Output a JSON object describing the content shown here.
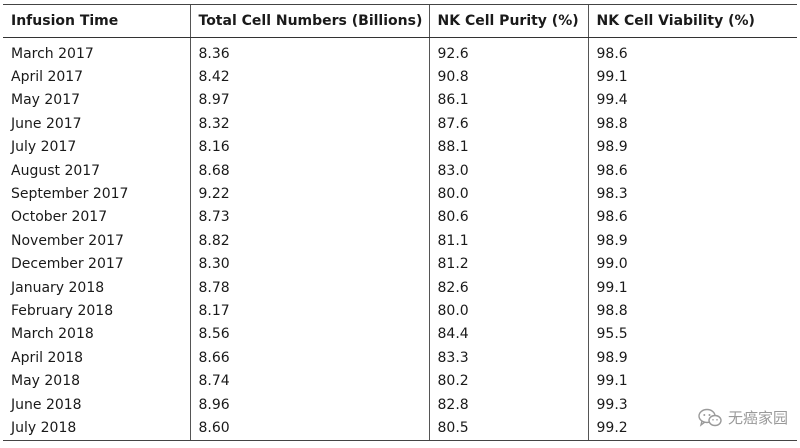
{
  "table": {
    "headers": [
      "Infusion Time",
      "Total Cell Numbers (Billions)",
      "NK Cell Purity (%)",
      "NK Cell Viability (%)"
    ],
    "rows": [
      [
        "March 2017",
        "8.36",
        "92.6",
        "98.6"
      ],
      [
        "April 2017",
        "8.42",
        "90.8",
        "99.1"
      ],
      [
        "May 2017",
        "8.97",
        "86.1",
        "99.4"
      ],
      [
        "June 2017",
        "8.32",
        "87.6",
        "98.8"
      ],
      [
        "July 2017",
        "8.16",
        "88.1",
        "98.9"
      ],
      [
        "August 2017",
        "8.68",
        "83.0",
        "98.6"
      ],
      [
        "September 2017",
        "9.22",
        "80.0",
        "98.3"
      ],
      [
        "October 2017",
        "8.73",
        "80.6",
        "98.6"
      ],
      [
        "November 2017",
        "8.82",
        "81.1",
        "98.9"
      ],
      [
        "December 2017",
        "8.30",
        "81.2",
        "99.0"
      ],
      [
        "January 2018",
        "8.78",
        "82.6",
        "99.1"
      ],
      [
        "February 2018",
        "8.17",
        "80.0",
        "98.8"
      ],
      [
        "March 2018",
        "8.56",
        "84.4",
        "95.5"
      ],
      [
        "April 2018",
        "8.66",
        "83.3",
        "98.9"
      ],
      [
        "May 2018",
        "8.74",
        "80.2",
        "99.1"
      ],
      [
        "June 2018",
        "8.96",
        "82.8",
        "99.3"
      ],
      [
        "July 2018",
        "8.60",
        "80.5",
        "99.2"
      ]
    ]
  },
  "watermark": {
    "text": "无癌家园",
    "icon": "wechat-icon",
    "color": "#9a9a9a"
  }
}
